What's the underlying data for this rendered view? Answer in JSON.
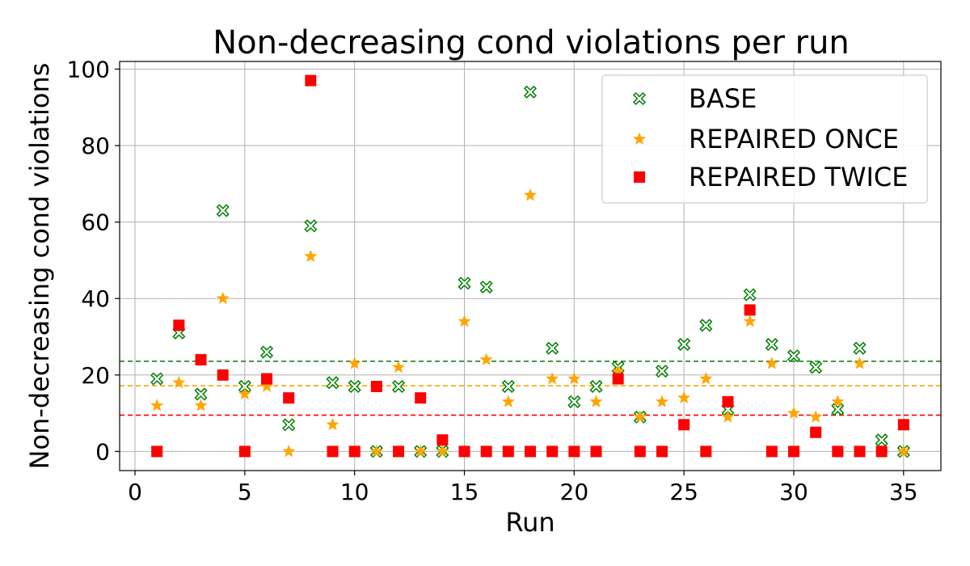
{
  "chart_data": {
    "type": "scatter",
    "title": "Non-decreasing cond violations per run",
    "xlabel": "Run",
    "ylabel": "Non-decreasing cond violations",
    "xlim": [
      -0.7,
      36.7
    ],
    "ylim": [
      -5,
      102
    ],
    "xticks": [
      0,
      5,
      10,
      15,
      20,
      25,
      30,
      35
    ],
    "yticks": [
      0,
      20,
      40,
      60,
      80,
      100
    ],
    "grid": true,
    "legend_position": "top-right",
    "x": [
      1,
      2,
      3,
      4,
      5,
      6,
      7,
      8,
      9,
      10,
      11,
      12,
      13,
      14,
      15,
      16,
      17,
      18,
      19,
      20,
      21,
      22,
      23,
      24,
      25,
      26,
      27,
      28,
      29,
      30,
      31,
      32,
      33,
      34,
      35
    ],
    "series": [
      {
        "name": "BASE",
        "marker": "x-open",
        "color": "#008000",
        "values": [
          19,
          31,
          15,
          63,
          17,
          26,
          7,
          59,
          18,
          17,
          0,
          17,
          0,
          0,
          44,
          43,
          17,
          94,
          27,
          13,
          17,
          22,
          9,
          21,
          28,
          33,
          11,
          41,
          28,
          25,
          22,
          11,
          27,
          3,
          0
        ],
        "mean": 23.6
      },
      {
        "name": "REPAIRED ONCE",
        "marker": "star",
        "color": "#ffa500",
        "values": [
          12,
          18,
          12,
          40,
          15,
          17,
          0,
          51,
          7,
          23,
          0,
          22,
          0,
          0,
          34,
          24,
          13,
          67,
          19,
          19,
          13,
          21,
          9,
          13,
          14,
          19,
          9,
          34,
          23,
          10,
          9,
          13,
          23,
          0,
          0
        ],
        "mean": 17.2
      },
      {
        "name": "REPAIRED TWICE",
        "marker": "square",
        "color": "#ff0000",
        "values": [
          0,
          33,
          24,
          20,
          0,
          19,
          14,
          97,
          0,
          0,
          17,
          0,
          14,
          3,
          0,
          0,
          0,
          0,
          0,
          0,
          0,
          19,
          0,
          0,
          7,
          0,
          13,
          37,
          0,
          0,
          5,
          0,
          0,
          0,
          7
        ],
        "mean": 9.5
      }
    ]
  }
}
